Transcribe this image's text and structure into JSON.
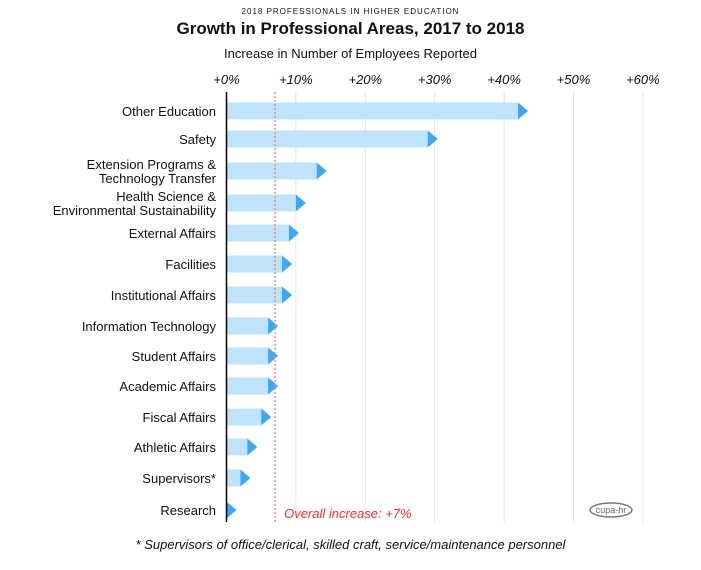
{
  "chart_data": {
    "type": "bar",
    "kicker": "2018 PROFESSIONALS IN HIGHER EDUCATION",
    "title": "Growth in Professional Areas, 2017 to 2018",
    "xlabel": "Increase in Number of Employees Reported",
    "ylabel": "",
    "xlim": [
      0,
      60
    ],
    "xticks": [
      "+0%",
      "+10%",
      "+20%",
      "+30%",
      "+40%",
      "+50%",
      "+60%"
    ],
    "grid": true,
    "categories": [
      "Other Education",
      "Safety",
      "Extension Programs &\nTechnology Transfer",
      "Health Science &\nEnvironmental Sustainability",
      "External Affairs",
      "Facilities",
      "Institutional Affairs",
      "Information Technology",
      "Student Affairs",
      "Academic Affairs",
      "Fiscal Affairs",
      "Athletic Affairs",
      "Supervisors*",
      "Research"
    ],
    "values": [
      42,
      29,
      13,
      10,
      9,
      8,
      8,
      6,
      6,
      6,
      5,
      3,
      2,
      0
    ],
    "reference_line": {
      "value": 7,
      "label": "Overall increase: +7%",
      "color": "#ff2a2a"
    },
    "bar_color": "#bfe3fb",
    "arrow_color": "#3aa9f5",
    "footnote": "* Supervisors of office/clerical, skilled craft, service/maintenance personnel",
    "logo": "cupa-hr"
  }
}
